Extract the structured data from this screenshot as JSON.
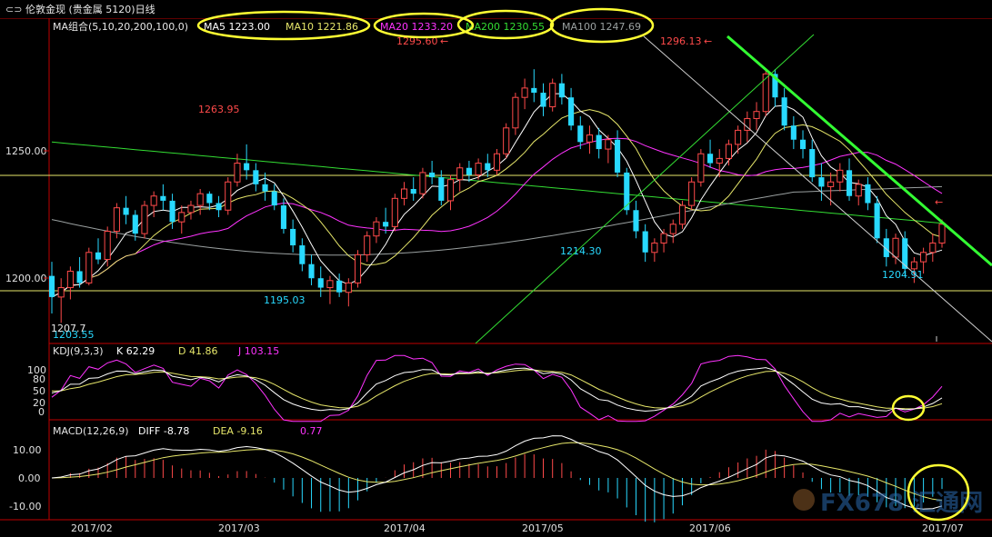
{
  "title": "伦敦金现 (贵金属 5120)日线",
  "colors": {
    "up": "#ff4a4a",
    "down": "#28d9ff",
    "ma5": "#ffffff",
    "ma10": "#e6e66a",
    "ma20": "#ff33ff",
    "ma200": "#33dd33",
    "ma100": "#9aa0a0",
    "ellipse": "#ffff33",
    "trend": "#33ff33",
    "axis": "#c00000"
  },
  "main_panel": {
    "legend": {
      "label": "MA组合(5,10,20,200,100,0)",
      "ma5": "MA5 1223.00",
      "ma10": "MA10 1221.86",
      "ma20": "MA20 1233.20",
      "ma200": "MA200 1230.55",
      "ma100": "MA100 1247.69"
    },
    "y_ticks": [
      "1250.00",
      "1200.00"
    ],
    "annotations": {
      "low_feb": "1203.55",
      "low_feb_top": "1207.7",
      "high_feb": "1263.95",
      "low_mar": "1195.03",
      "high_apr": "1295.60",
      "low_may": "1214.30",
      "high_jun": "1296.13",
      "low_jul": "1204.91"
    }
  },
  "kdj_panel": {
    "label": "KDJ(9,3,3)",
    "k": "K 62.29",
    "d": "D 41.86",
    "j": "J 103.15",
    "y_ticks": [
      "100",
      "80",
      "50",
      "20",
      "0"
    ]
  },
  "macd_panel": {
    "label": "MACD(12,26,9)",
    "diff": "DIFF -8.78",
    "dea": "DEA -9.16",
    "macd": "0.77",
    "y_ticks": [
      "10.00",
      "0.00",
      "-10.00"
    ]
  },
  "x_ticks": [
    "2017/02",
    "2017/03",
    "2017/04",
    "2017/05",
    "2017/06",
    "2017/07"
  ],
  "watermark": "FX678 汇通网",
  "chart_data": {
    "type": "candlestick",
    "instrument": "伦敦金现",
    "period": "daily",
    "price_range": [
      1180,
      1310
    ],
    "candles_start_index": 0,
    "candles": [
      [
        1208,
        1214,
        1192,
        1199
      ],
      [
        1199,
        1207,
        1188,
        1203
      ],
      [
        1203,
        1212,
        1198,
        1210
      ],
      [
        1210,
        1216,
        1203,
        1205
      ],
      [
        1205,
        1220,
        1204,
        1218
      ],
      [
        1218,
        1224,
        1213,
        1215
      ],
      [
        1215,
        1229,
        1212,
        1227
      ],
      [
        1227,
        1239,
        1224,
        1237
      ],
      [
        1237,
        1242,
        1230,
        1234
      ],
      [
        1234,
        1236,
        1223,
        1226
      ],
      [
        1226,
        1240,
        1224,
        1238
      ],
      [
        1238,
        1244,
        1233,
        1242
      ],
      [
        1242,
        1247,
        1236,
        1240
      ],
      [
        1240,
        1243,
        1228,
        1231
      ],
      [
        1231,
        1238,
        1226,
        1235
      ],
      [
        1235,
        1240,
        1232,
        1238
      ],
      [
        1238,
        1245,
        1234,
        1243
      ],
      [
        1243,
        1244,
        1236,
        1239
      ],
      [
        1239,
        1242,
        1233,
        1236
      ],
      [
        1236,
        1250,
        1234,
        1248
      ],
      [
        1248,
        1260,
        1246,
        1256
      ],
      [
        1256,
        1264,
        1249,
        1253
      ],
      [
        1253,
        1256,
        1244,
        1247
      ],
      [
        1247,
        1252,
        1240,
        1244
      ],
      [
        1244,
        1247,
        1236,
        1238
      ],
      [
        1238,
        1241,
        1226,
        1228
      ],
      [
        1228,
        1232,
        1218,
        1221
      ],
      [
        1221,
        1224,
        1210,
        1213
      ],
      [
        1213,
        1217,
        1204,
        1207
      ],
      [
        1207,
        1212,
        1199,
        1203
      ],
      [
        1203,
        1208,
        1196,
        1206
      ],
      [
        1206,
        1209,
        1199,
        1201
      ],
      [
        1201,
        1207,
        1195,
        1205
      ],
      [
        1205,
        1219,
        1203,
        1217
      ],
      [
        1217,
        1227,
        1214,
        1225
      ],
      [
        1225,
        1233,
        1222,
        1231
      ],
      [
        1231,
        1237,
        1226,
        1229
      ],
      [
        1229,
        1243,
        1227,
        1241
      ],
      [
        1241,
        1248,
        1238,
        1245
      ],
      [
        1245,
        1250,
        1240,
        1243
      ],
      [
        1243,
        1254,
        1241,
        1252
      ],
      [
        1252,
        1257,
        1247,
        1250
      ],
      [
        1250,
        1253,
        1238,
        1240
      ],
      [
        1240,
        1251,
        1236,
        1249
      ],
      [
        1249,
        1256,
        1244,
        1254
      ],
      [
        1254,
        1257,
        1248,
        1251
      ],
      [
        1251,
        1258,
        1249,
        1256
      ],
      [
        1256,
        1260,
        1250,
        1253
      ],
      [
        1253,
        1262,
        1251,
        1260
      ],
      [
        1260,
        1273,
        1258,
        1271
      ],
      [
        1271,
        1286,
        1268,
        1284
      ],
      [
        1284,
        1292,
        1279,
        1288
      ],
      [
        1288,
        1296,
        1282,
        1286
      ],
      [
        1286,
        1290,
        1276,
        1280
      ],
      [
        1280,
        1292,
        1278,
        1290
      ],
      [
        1290,
        1294,
        1281,
        1284
      ],
      [
        1284,
        1288,
        1270,
        1272
      ],
      [
        1272,
        1276,
        1262,
        1265
      ],
      [
        1265,
        1272,
        1260,
        1268
      ],
      [
        1268,
        1271,
        1258,
        1262
      ],
      [
        1262,
        1268,
        1256,
        1266
      ],
      [
        1266,
        1270,
        1250,
        1252
      ],
      [
        1252,
        1254,
        1234,
        1236
      ],
      [
        1236,
        1240,
        1224,
        1227
      ],
      [
        1227,
        1230,
        1214,
        1218
      ],
      [
        1218,
        1224,
        1214,
        1222
      ],
      [
        1222,
        1228,
        1218,
        1226
      ],
      [
        1226,
        1232,
        1222,
        1230
      ],
      [
        1230,
        1240,
        1228,
        1238
      ],
      [
        1238,
        1250,
        1236,
        1248
      ],
      [
        1248,
        1262,
        1246,
        1260
      ],
      [
        1260,
        1266,
        1254,
        1256
      ],
      [
        1256,
        1262,
        1250,
        1258
      ],
      [
        1258,
        1266,
        1255,
        1264
      ],
      [
        1264,
        1272,
        1260,
        1270
      ],
      [
        1270,
        1278,
        1265,
        1275
      ],
      [
        1275,
        1282,
        1270,
        1278
      ],
      [
        1278,
        1296,
        1276,
        1294
      ],
      [
        1294,
        1296,
        1280,
        1284
      ],
      [
        1284,
        1288,
        1270,
        1272
      ],
      [
        1272,
        1276,
        1262,
        1266
      ],
      [
        1266,
        1270,
        1258,
        1262
      ],
      [
        1262,
        1266,
        1248,
        1250
      ],
      [
        1250,
        1256,
        1240,
        1246
      ],
      [
        1246,
        1252,
        1238,
        1248
      ],
      [
        1248,
        1256,
        1244,
        1253
      ],
      [
        1253,
        1258,
        1240,
        1242
      ],
      [
        1242,
        1249,
        1238,
        1247
      ],
      [
        1247,
        1250,
        1236,
        1239
      ],
      [
        1239,
        1242,
        1222,
        1224
      ],
      [
        1224,
        1228,
        1212,
        1216
      ],
      [
        1216,
        1226,
        1213,
        1224
      ],
      [
        1224,
        1227,
        1208,
        1211
      ],
      [
        1211,
        1216,
        1205,
        1214
      ],
      [
        1214,
        1220,
        1209,
        1218
      ],
      [
        1218,
        1226,
        1214,
        1222
      ],
      [
        1222,
        1232,
        1220,
        1230
      ]
    ]
  }
}
